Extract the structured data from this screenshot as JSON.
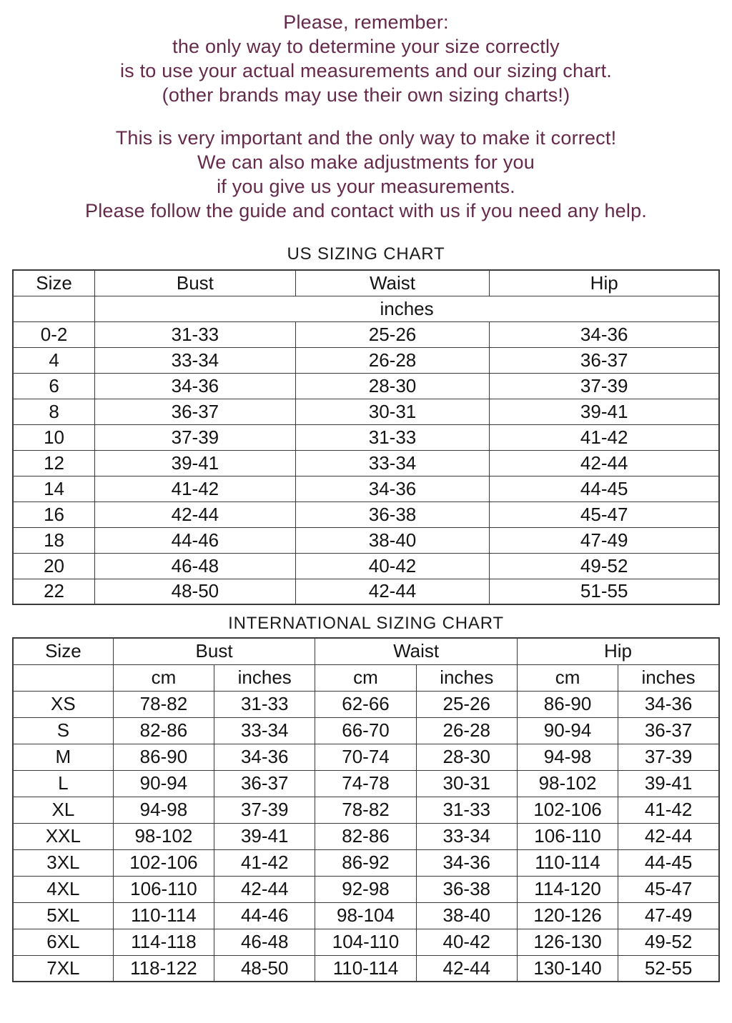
{
  "intro": {
    "block1": [
      "Please, remember:",
      "the only way to determine your size correctly",
      "is to use your actual measurements and our sizing chart.",
      "(other brands may use their own sizing charts!)"
    ],
    "block2": [
      "This is very important and the only way to make it correct!",
      "We can also make adjustments for you",
      "if you give us your measurements.",
      "Please follow the guide and contact with us if you need any help."
    ]
  },
  "us_chart": {
    "title": "US SIZING CHART",
    "columns": [
      "Size",
      "Bust",
      "Waist",
      "Hip"
    ],
    "unit_label": "inches",
    "rows": [
      [
        "0-2",
        "31-33",
        "25-26",
        "34-36"
      ],
      [
        "4",
        "33-34",
        "26-28",
        "36-37"
      ],
      [
        "6",
        "34-36",
        "28-30",
        "37-39"
      ],
      [
        "8",
        "36-37",
        "30-31",
        "39-41"
      ],
      [
        "10",
        "37-39",
        "31-33",
        "41-42"
      ],
      [
        "12",
        "39-41",
        "33-34",
        "42-44"
      ],
      [
        "14",
        "41-42",
        "34-36",
        "44-45"
      ],
      [
        "16",
        "42-44",
        "36-38",
        "45-47"
      ],
      [
        "18",
        "44-46",
        "38-40",
        "47-49"
      ],
      [
        "20",
        "46-48",
        "40-42",
        "49-52"
      ],
      [
        "22",
        "48-50",
        "42-44",
        "51-55"
      ]
    ]
  },
  "intl_chart": {
    "title": "INTERNATIONAL SIZING CHART",
    "columns": [
      "Size",
      "Bust",
      "Waist",
      "Hip"
    ],
    "sub_columns": [
      "cm",
      "inches",
      "cm",
      "inches",
      "cm",
      "inches"
    ],
    "rows": [
      [
        "XS",
        "78-82",
        "31-33",
        "62-66",
        "25-26",
        "86-90",
        "34-36"
      ],
      [
        "S",
        "82-86",
        "33-34",
        "66-70",
        "26-28",
        "90-94",
        "36-37"
      ],
      [
        "M",
        "86-90",
        "34-36",
        "70-74",
        "28-30",
        "94-98",
        "37-39"
      ],
      [
        "L",
        "90-94",
        "36-37",
        "74-78",
        "30-31",
        "98-102",
        "39-41"
      ],
      [
        "XL",
        "94-98",
        "37-39",
        "78-82",
        "31-33",
        "102-106",
        "41-42"
      ],
      [
        "XXL",
        "98-102",
        "39-41",
        "82-86",
        "33-34",
        "106-110",
        "42-44"
      ],
      [
        "3XL",
        "102-106",
        "41-42",
        "86-92",
        "34-36",
        "110-114",
        "44-45"
      ],
      [
        "4XL",
        "106-110",
        "42-44",
        "92-98",
        "36-38",
        "114-120",
        "45-47"
      ],
      [
        "5XL",
        "110-114",
        "44-46",
        "98-104",
        "38-40",
        "120-126",
        "47-49"
      ],
      [
        "6XL",
        "114-118",
        "46-48",
        "104-110",
        "40-42",
        "126-130",
        "49-52"
      ],
      [
        "7XL",
        "118-122",
        "48-50",
        "110-114",
        "42-44",
        "130-140",
        "52-55"
      ]
    ]
  },
  "colors": {
    "intro_text": "#652a4b",
    "table_text": "#141414",
    "table_border": "#3a3a3a",
    "background": "#ffffff"
  }
}
